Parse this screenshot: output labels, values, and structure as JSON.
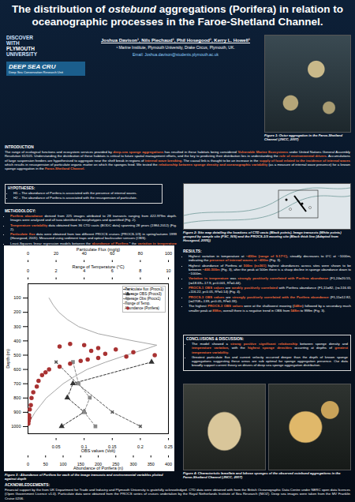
{
  "poster": {
    "title": "The distribution of ostebund aggregations (Porifera) in relation to oceanographic processes in the Faroe-Shetland Channel.",
    "title_italic": "ostebund",
    "authors": "Joshua Davison¹, Nils Piechaud¹, Phil Hosegood¹, Kerry L. Howell¹",
    "affiliation": "¹ Marine Institute, Plymouth University, Drake Circus, Plymouth, UK.",
    "email": "Email: Joshua.davison@students.plymouth.ac.uk",
    "logo1": [
      "DISCOVER",
      "WITH",
      "PLYMOUTH",
      "UNIVERSITY"
    ],
    "logo2": {
      "name": "DEEP SEA CRU",
      "subtitle": "Deep Sea Conservation Research Unit"
    },
    "figure1_caption": "Figure 1: Ostur aggregation in the Faroe-Shetland Channel (JNCC, 2007)",
    "introduction": {
      "heading": "INTRODUCTION",
      "text": "The range of ecological functions and ecosystem services provided by deep-sea sponge aggregations has resulted in these habitats being considered Vulnerable Marine Ecosystems under United Nations General Assembly Resolution 61/105. Understanding the distribution of these habitats is critical to future spatial management efforts, and the key to predicting their distribution lies in understanding the role of environmental drivers. Accumulations of large suspension feeders are hypothesised to aggregate near the shelf break in regions of internal wave breaking. The causal link is thought to be an increase in the supply of food related to the incidence of internal waves which results in resuspension of particulate organic matter on which the sponges feed. We tested the relationship between sponge density and oceanographic variability (as a measure of internal wave presence) for a known sponge aggregation in the Faroe-Shetland Channel.",
      "highlights": [
        "deep-sea sponge aggregations",
        "Vulnerable Marine Ecosystems",
        "role of environmental drivers",
        "internal wave breaking",
        "supply of food related to the incidence of internal waves",
        "relationship between sponge density and oceanographic variability",
        "Faroe-Shetland Channel."
      ]
    },
    "hypotheses": {
      "heading": "HYPOTHESES:",
      "items": [
        "H1 – The abundance of Porifera is associated with the presence of internal waves.",
        "H2 – The abundance of Porifera is associated with the resuspension of particulate."
      ]
    },
    "methodology": {
      "heading": "METHODOLOGY:",
      "items": [
        "Porifera abundance derived from 225 images attributed to 28 transects ranging from 422-979m depth. Images were analysed and all taxa identified to morphotypes and quantified (Fig. 2).",
        "Temperature variability data obtained from 36 CTD casts (BODC data) spanning 28 years (1984-2012) (Fig. 2).",
        "Particulate flux data were obtained from two different PROCS cruises (PROCS-1/3) in spring/autumn 1999 (Hosegood, 2005). Measured using sediment traps and optical backscatter sensors (OBS).",
        "Least-Squares linear regression models between the abundance of Porifera * the variation in temperature ranges, an indicator of IWS, and OBS data."
      ],
      "highlights": [
        "Porifera abundance",
        "Temperature variability",
        "Particulate flux",
        "abundance of Porifera",
        "variation in temperature ranges",
        "OBS data"
      ]
    },
    "figure2_caption": "Figure 2: Site map detailing the locations of CTD casts (Black points), Image transects (White points) grouped by sample site (FSC_N/S) and the PROCS-1/3 mooring site (Black thick line (Adapted from Hosegood, 2005))",
    "results": {
      "heading": "RESULTS:",
      "items": [
        "Highest variation in temperature at ~430m (range of 9.17°C), steadily decreases to 0°C at ~1000m, indicating the presence of internal waves at ~430m (Fig. 3).",
        "Highest abundance of Porifera at 500m (n=361) highest abundances across sites were shown to be between ~400-500m (Fig. 3), after the peak at 500m there is a sharp decline in sponge abundance down to ~1000m.",
        "Variation in temperature was strongly positively correlated with Porifera abundance (F1,24=20.55, (r=18.69+-17.9, p<0.001, R²=0.44).",
        "PROCS-1 OBS values are weakly positively correlated with Porifera abundance (F1,15=82, (r=-516.65 +116.22, p<0.05, R²=0.14) (Fig. 4).",
        "PROCS-3 OBS values are strongly positively correlated with the Porifera abundance (F1,11=12.82, (r=2708+-139, p<0.05, R²=0.33).",
        "The highest PROCS-3 OBS values were at the shallowest mooring (548m) followed by a secondary much smaller peak at 898m, overall there is a negative trend in OBS from 548m to 998m (Fig. 3)."
      ],
      "highlights": [
        "~430m (range of 9.17°C)",
        "presence of internal waves at ~430m",
        "500m (n=361)",
        "~400-500m",
        "Variation in temperature",
        "strongly positively correlated with Porifera abundance",
        "weakly positively correlated",
        "strongly positively correlated with the Porifera abundance",
        "PROCS-1 OBS values",
        "PROCS-3 OBS values",
        "548m",
        "898m"
      ]
    },
    "conclusions": {
      "heading": "CONCLUSIONS & DISCUSSION:",
      "items": [
        "The model showed a strong positive significant relationship between sponge density and temperature variation, with the highest sponge densities occurring at depths of greatest temperature variability.",
        "Greatest particulate flux and current velocity occurred deeper than the depth of known sponge aggregations suggesting these areas are sub optimal for sponge aggregation presence. Our data broadly support current theory on drivers of deep sea sponge aggregation distribution."
      ],
      "highlights": [
        "strong positive significant relationship",
        "temperature variation",
        "highest sponge densities",
        "greatest temperature variability"
      ]
    },
    "figure3_caption": "Figure 3 : Abundance of Porifera for each of the image transects and environmental variables plotted against depth",
    "figure4_caption": "Figure 4: Characteristic lamellate and lobose sponges of the observed ostebund aggregations in the Faroe-Shetland Channel (JNCC, 2007)",
    "acknowledgements": {
      "heading": "ACKNOWLEDGEMENTS:",
      "text": "Financial support by the from UK Department for Trade and Industry and Plymouth University is gratefully acknowledged. CTD data were obtained with from the British Oceanographic Data Centre under NERC open data licences (Open Government Licence v1.0). Particulate data were obtained from the PROCS series of cruises undertaken by the Royal Netherlands Institute of Sea Research (NIOZ). Deep sea images were taken from the MV Franklin Cruise 0206."
    }
  },
  "chart_data": [
    {
      "type": "line",
      "xlabel": "Particulate Flux (mg/g)",
      "xlim": [
        0,
        100
      ],
      "xticks": [
        0,
        20,
        40,
        60,
        80,
        100
      ],
      "ylim": [
        0,
        1050
      ],
      "yticks": [
        100,
        200,
        300,
        400,
        500,
        600,
        700,
        800,
        900,
        1000
      ],
      "legend": "top-right",
      "series": [
        {
          "name": "Particulate flux (Procs1)",
          "color": "#555555",
          "marker": "times",
          "line_style": "dashed",
          "depth": [
            548,
            698,
            898,
            998
          ],
          "values": [
            20,
            35,
            60,
            80
          ]
        }
      ]
    },
    {
      "type": "line",
      "xlabel": "OBS values (Volt)",
      "xlim": [
        0,
        0.25
      ],
      "xticks": [
        0.05,
        0.1,
        0.15,
        0.2,
        0.25
      ],
      "ylim": [
        0,
        1050
      ],
      "yticks": [
        100,
        200,
        300,
        400,
        500,
        600,
        700,
        800,
        900,
        1000
      ],
      "series": [
        {
          "name": "Average OBS (Procs3)",
          "color": "#333333",
          "marker": "triangle",
          "line_style": "dashed",
          "depth": [
            548,
            698,
            798,
            898,
            998
          ],
          "values": [
            0.22,
            0.08,
            0.07,
            0.1,
            0.06
          ]
        },
        {
          "name": "Average Obs (Procs1)",
          "color": "#888888",
          "marker": "square",
          "line_style": "dashed",
          "depth": [
            548,
            698,
            798,
            898,
            998
          ],
          "values": [
            0.08,
            0.09,
            0.11,
            0.1,
            0.12
          ]
        }
      ]
    },
    {
      "type": "line",
      "xlabel": "Range of Temperature (°C)",
      "xlim": [
        0,
        10
      ],
      "xticks": [
        0,
        2,
        4,
        6,
        8,
        10
      ],
      "ylim": [
        0,
        1050
      ],
      "yticks": [
        100,
        200,
        300,
        400,
        500,
        600,
        700,
        800,
        900,
        1000
      ],
      "series": [
        {
          "name": "Range of Temp.",
          "color": "#a6a6a6",
          "line_style": "solid",
          "depth": [
            100,
            150,
            200,
            250,
            300,
            350,
            400,
            430,
            450,
            500,
            550,
            600,
            650,
            700,
            750,
            800,
            850,
            900,
            950,
            1000
          ],
          "values": [
            1.5,
            1.8,
            2.2,
            2.8,
            3.6,
            5.0,
            7.5,
            9.17,
            8.6,
            7.0,
            5.5,
            4.2,
            3.3,
            2.5,
            1.9,
            1.3,
            0.9,
            0.5,
            0.2,
            0
          ]
        }
      ]
    },
    {
      "type": "scatter",
      "xlabel": "Abundance of Porifera (n)",
      "ylabel": "Depth (m)",
      "xlim": [
        0,
        400
      ],
      "xticks": [
        0,
        50,
        100,
        150,
        200,
        250,
        300,
        350,
        400
      ],
      "ylim": [
        0,
        1050
      ],
      "yticks": [
        100,
        200,
        300,
        400,
        500,
        600,
        700,
        800,
        900,
        1000
      ],
      "series": [
        {
          "name": "Abundance (Porifera)",
          "color": "#a83232",
          "marker": "circle",
          "depth": [
            422,
            430,
            440,
            450,
            460,
            470,
            480,
            490,
            500,
            510,
            520,
            530,
            540,
            560,
            580,
            600,
            620,
            640,
            680,
            720,
            760,
            800,
            850,
            880,
            920,
            940,
            960,
            979
          ],
          "values": [
            120,
            160,
            90,
            200,
            250,
            180,
            300,
            220,
            361,
            280,
            200,
            170,
            150,
            120,
            90,
            60,
            50,
            40,
            30,
            25,
            15,
            10,
            8,
            5,
            3,
            4,
            2,
            1
          ]
        }
      ]
    }
  ]
}
